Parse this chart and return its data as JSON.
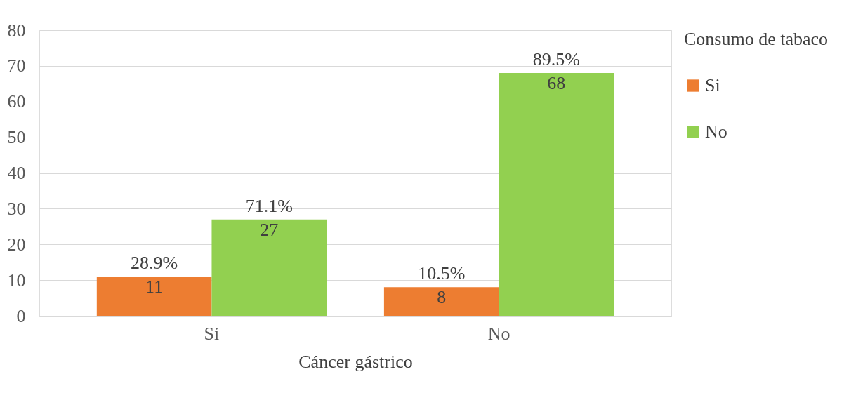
{
  "chart_data": {
    "type": "bar",
    "xlabel": "Cáncer gástrico",
    "legend_title": "Consumo de tabaco",
    "categories": [
      "Si",
      "No"
    ],
    "series": [
      {
        "name": "Si",
        "color": "#ed7d31",
        "values": [
          11,
          8
        ],
        "value_labels": [
          "28.9%\n11",
          "10.5%\n8"
        ]
      },
      {
        "name": "No",
        "color": "#92d050",
        "values": [
          27,
          68
        ],
        "value_labels": [
          "71.1%\n27",
          "89.5%\n68"
        ]
      }
    ],
    "ylim": [
      0,
      80
    ],
    "yticks": [
      0,
      10,
      20,
      30,
      40,
      50,
      60,
      70,
      80
    ],
    "grid": "y",
    "legend": "right"
  }
}
